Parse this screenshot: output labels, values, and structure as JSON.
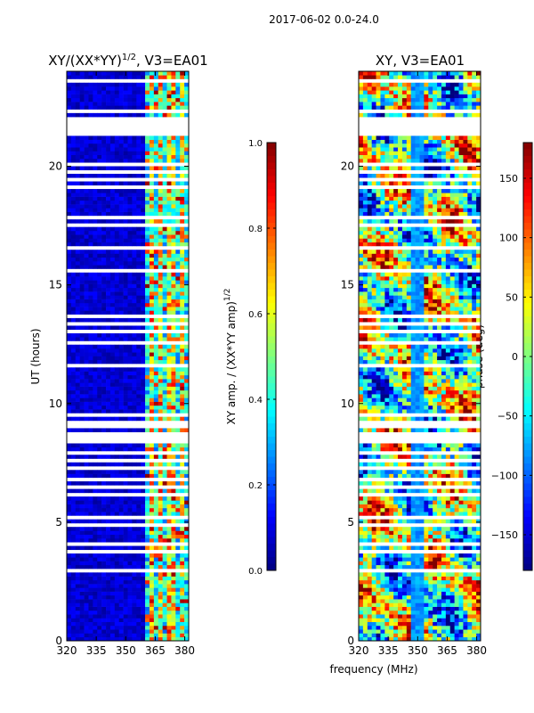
{
  "suptitle": "2017-06-02 0.0-24.0",
  "colors": {
    "jet": [
      "#00007f",
      "#0000ff",
      "#007fff",
      "#00ffff",
      "#7fff7f",
      "#ffff00",
      "#ff7f00",
      "#ff0000",
      "#7f0000"
    ],
    "gap": "#ffffff",
    "frame": "#000000"
  },
  "chart_data": [
    {
      "type": "heatmap",
      "title": "XY/(XX*YY)",
      "title_sup": "1/2",
      "title_suffix": ", V3=EA01",
      "xlabel": "",
      "ylabel": "UT (hours)",
      "xlim": [
        320,
        382
      ],
      "ylim": [
        0,
        24
      ],
      "xticks": [
        320,
        335,
        350,
        365,
        380
      ],
      "yticks": [
        0,
        5,
        10,
        15,
        20
      ],
      "quantity": "amplitude",
      "rfi_band_mhz": [
        359,
        382
      ],
      "colorbar": {
        "label": "XY amp. / (XX*YY amp)",
        "label_sup": "1/2",
        "range": [
          0.0,
          1.0
        ],
        "ticks": [
          0.0,
          0.2,
          0.4,
          0.6,
          0.8,
          1.0
        ],
        "tick_labels": [
          "0.0",
          "0.2",
          "0.4",
          "0.6",
          "0.8",
          "1.0"
        ]
      }
    },
    {
      "type": "heatmap",
      "title": "XY, V3=EA01",
      "xlabel": "frequency (MHz)",
      "ylabel": "",
      "xlim": [
        320,
        382
      ],
      "ylim": [
        0,
        24
      ],
      "xticks": [
        320,
        335,
        350,
        365,
        380
      ],
      "yticks": [
        0,
        5,
        10,
        15,
        20
      ],
      "quantity": "phase",
      "colorbar": {
        "label": "phase (deg)",
        "range": [
          -180,
          180
        ],
        "ticks": [
          -150,
          -100,
          -50,
          0,
          50,
          100,
          150
        ],
        "tick_labels": [
          "−150",
          "−100",
          "−50",
          "0",
          "50",
          "100",
          "150"
        ]
      }
    }
  ],
  "flagged_ut_hours": [
    [
      0.45,
      0.55
    ],
    [
      0.9,
      1.0
    ],
    [
      1.25,
      1.32
    ],
    [
      2.9,
      3.0
    ],
    [
      3.2,
      3.27
    ],
    [
      3.45,
      3.55
    ],
    [
      3.75,
      3.82
    ],
    [
      4.05,
      4.12
    ],
    [
      4.45,
      4.52
    ],
    [
      4.85,
      4.92
    ],
    [
      5.15,
      5.22
    ],
    [
      5.45,
      5.52
    ],
    [
      5.85,
      5.92
    ],
    [
      6.15,
      6.22
    ],
    [
      6.45,
      6.52
    ],
    [
      6.75,
      6.85
    ],
    [
      7.0,
      7.07
    ],
    [
      7.25,
      7.32
    ],
    [
      7.55,
      7.7
    ],
    [
      7.9,
      8.0
    ],
    [
      8.15,
      8.22
    ],
    [
      8.4,
      8.8
    ],
    [
      8.95,
      9.05
    ],
    [
      9.2,
      9.27
    ],
    [
      9.45,
      9.55
    ],
    [
      11.55,
      11.62
    ],
    [
      12.55,
      12.62
    ],
    [
      12.75,
      12.85
    ],
    [
      13.0,
      13.1
    ],
    [
      13.25,
      13.4
    ],
    [
      13.55,
      13.7
    ],
    [
      14.05,
      14.12
    ],
    [
      14.55,
      14.62
    ],
    [
      15.05,
      15.12
    ],
    [
      15.55,
      15.62
    ],
    [
      15.95,
      16.05
    ],
    [
      16.55,
      16.62
    ],
    [
      17.05,
      17.12
    ],
    [
      17.45,
      17.55
    ],
    [
      17.8,
      17.95
    ],
    [
      18.05,
      18.12
    ],
    [
      18.55,
      18.62
    ],
    [
      19.05,
      19.12
    ],
    [
      19.4,
      19.5
    ],
    [
      19.75,
      19.85
    ],
    [
      20.0,
      20.08
    ],
    [
      21.3,
      22.0
    ],
    [
      22.3,
      22.36
    ],
    [
      22.65,
      22.72
    ],
    [
      23.2,
      23.27
    ],
    [
      23.55,
      23.62
    ]
  ]
}
